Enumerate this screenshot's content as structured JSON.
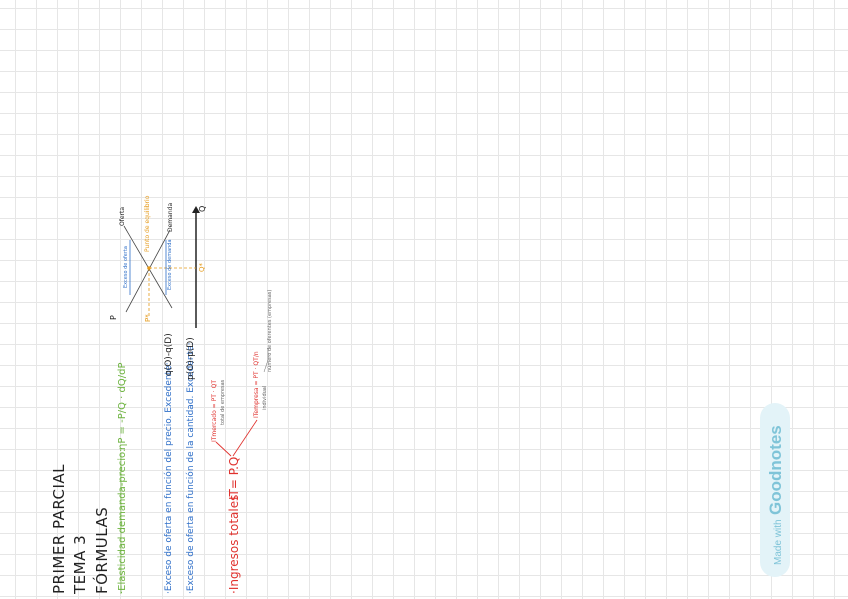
{
  "title_lines": [
    "PRIMER PARCIAL",
    "TEMA 3",
    "FÓRMULAS"
  ],
  "elasticity": {
    "label": "·Elasticidad demanda-precio:",
    "formula": "ηP = -P/Q · dQ/dP"
  },
  "excess_supply_price": {
    "label": "·Exceso de oferta en función del precio. Excedente:",
    "formula": "q(O)-q(D)"
  },
  "excess_supply_quantity": {
    "label": "·Exceso de oferta en función de la cantidad. Excedente:",
    "formula": "p(O)-p(D)"
  },
  "total_revenue": {
    "label": "·Ingresos totales",
    "formula": "IT= P.Q",
    "branch_top_label": "ITmercado = PT · QT",
    "branch_top_note": "total de empresas",
    "branch_bottom_label": "ITempresa = PT · QT/n",
    "branch_bottom_note": "individual",
    "branch_bottom_n_note": "número de oferentes (empresas)"
  },
  "diagram": {
    "axis_p": "P",
    "axis_q": "Q",
    "p_star": "P*",
    "q_star": "Q*",
    "supply": "Oferta",
    "demand": "Demanda",
    "equilibrium": "Punto de equilibrio",
    "excess_supply": "Exceso de oferta",
    "excess_demand": "Exceso de demanda"
  },
  "colors": {
    "green": "#6db33f",
    "blue": "#2f6fc8",
    "red": "#e0322e",
    "orange": "#e59a1a"
  },
  "badge": {
    "made": "Made with",
    "brand": "Goodnotes"
  }
}
